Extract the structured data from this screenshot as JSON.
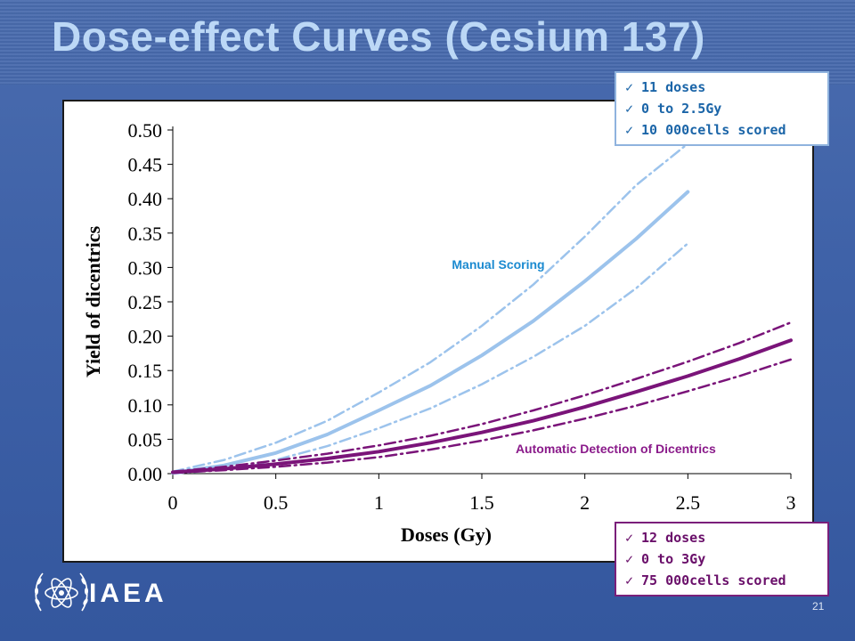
{
  "slide": {
    "title": "Dose-effect Curves (Cesium 137)",
    "page_number": "21",
    "logo_text": "IAEA",
    "logo_icon": "iaea-atom-laurel-icon"
  },
  "notes": {
    "manual": [
      "11 doses",
      "0 to 2.5Gy",
      "10 000cells scored"
    ],
    "automatic": [
      "12 doses",
      "0 to 3Gy",
      "75 000cells scored"
    ],
    "check_glyph": "✓"
  },
  "colors": {
    "manual": "#9cc3ec",
    "automatic": "#7a1479",
    "title": "#bcd8f6",
    "background": "#3f62a8"
  },
  "chart_data": {
    "type": "line",
    "xlabel": "Doses (Gy)",
    "ylabel": "Yield of dicentrics",
    "xlim": [
      0,
      3
    ],
    "ylim": [
      0,
      0.5
    ],
    "x_ticks": [
      "0",
      "0.5",
      "1",
      "1.5",
      "2",
      "2.5",
      "3"
    ],
    "x_tick_values": [
      0,
      0.5,
      1,
      1.5,
      2,
      2.5,
      3
    ],
    "y_ticks": [
      "0.00",
      "0.05",
      "0.10",
      "0.15",
      "0.20",
      "0.25",
      "0.30",
      "0.35",
      "0.40",
      "0.45",
      "0.50"
    ],
    "y_tick_values": [
      0,
      0.05,
      0.1,
      0.15,
      0.2,
      0.25,
      0.3,
      0.35,
      0.4,
      0.45,
      0.5
    ],
    "grid": false,
    "annotations": [
      {
        "text": "Manual Scoring",
        "x": 1.58,
        "y": 0.298,
        "color": "#1b8ad0",
        "series": "manual"
      },
      {
        "text": "Automatic Detection of Dicentrics",
        "x": 2.15,
        "y": 0.03,
        "color": "#8a1a8a",
        "series": "automatic"
      }
    ],
    "series": [
      {
        "key": "manual",
        "style": "fit",
        "color": "#9cc3ec",
        "x": [
          0,
          0.25,
          0.5,
          0.75,
          1,
          1.25,
          1.5,
          1.75,
          2,
          2.25,
          2.5
        ],
        "values": [
          0.001,
          0.012,
          0.03,
          0.057,
          0.092,
          0.128,
          0.172,
          0.222,
          0.28,
          0.342,
          0.41
        ]
      },
      {
        "key": "manual-upper",
        "style": "ci",
        "color": "#9cc3ec",
        "x": [
          0,
          0.25,
          0.5,
          0.75,
          1,
          1.25,
          1.5,
          1.75,
          2,
          2.25,
          2.5
        ],
        "values": [
          0.003,
          0.02,
          0.045,
          0.077,
          0.118,
          0.162,
          0.215,
          0.275,
          0.345,
          0.42,
          0.48
        ]
      },
      {
        "key": "manual-lower",
        "style": "ci",
        "color": "#9cc3ec",
        "x": [
          0,
          0.25,
          0.5,
          0.75,
          1,
          1.25,
          1.5,
          1.75,
          2,
          2.25,
          2.5
        ],
        "values": [
          0,
          0.006,
          0.02,
          0.04,
          0.066,
          0.095,
          0.13,
          0.17,
          0.215,
          0.27,
          0.335
        ]
      },
      {
        "key": "automatic",
        "style": "fit",
        "color": "#7a1479",
        "x": [
          0,
          0.25,
          0.5,
          0.75,
          1,
          1.25,
          1.5,
          1.75,
          2,
          2.25,
          2.5,
          2.75,
          3
        ],
        "values": [
          0.002,
          0.007,
          0.014,
          0.022,
          0.032,
          0.045,
          0.06,
          0.077,
          0.097,
          0.119,
          0.142,
          0.167,
          0.194
        ]
      },
      {
        "key": "automatic-upper",
        "style": "ci",
        "color": "#7a1479",
        "x": [
          0,
          0.25,
          0.5,
          0.75,
          1,
          1.25,
          1.5,
          1.75,
          2,
          2.25,
          2.5,
          2.75,
          3
        ],
        "values": [
          0.003,
          0.01,
          0.019,
          0.029,
          0.041,
          0.055,
          0.072,
          0.092,
          0.114,
          0.138,
          0.163,
          0.19,
          0.22
        ]
      },
      {
        "key": "automatic-lower",
        "style": "ci",
        "color": "#7a1479",
        "x": [
          0,
          0.25,
          0.5,
          0.75,
          1,
          1.25,
          1.5,
          1.75,
          2,
          2.25,
          2.5,
          2.75,
          3
        ],
        "values": [
          0.001,
          0.005,
          0.01,
          0.016,
          0.024,
          0.035,
          0.048,
          0.063,
          0.08,
          0.099,
          0.12,
          0.142,
          0.166
        ]
      }
    ]
  }
}
